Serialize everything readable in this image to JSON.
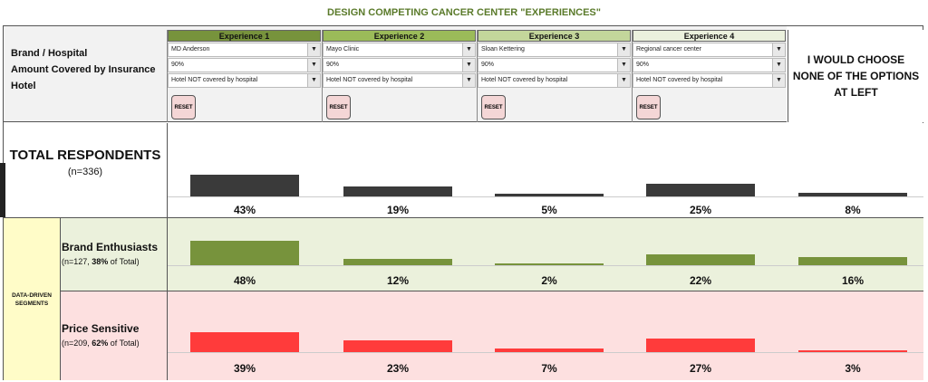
{
  "title": "DESIGN COMPETING CANCER CENTER \"EXPERIENCES\"",
  "attributes": [
    "Brand / Hospital",
    "Amount Covered by Insurance",
    "Hotel"
  ],
  "experiences": [
    {
      "label": "Experience 1",
      "brand": "MD Anderson",
      "coverage": "90%",
      "hotel": "Hotel NOT covered by hospital",
      "header_color": "#77933c"
    },
    {
      "label": "Experience 2",
      "brand": "Mayo Clinic",
      "coverage": "90%",
      "hotel": "Hotel NOT covered by hospital",
      "header_color": "#9bbb59"
    },
    {
      "label": "Experience 3",
      "brand": "Sloan Kettering",
      "coverage": "90%",
      "hotel": "Hotel NOT covered by hospital",
      "header_color": "#c3d69b"
    },
    {
      "label": "Experience 4",
      "brand": "Regional cancer center",
      "coverage": "90%",
      "hotel": "Hotel NOT covered by hospital",
      "header_color": "#ebf1dd"
    }
  ],
  "reset_label": "RESET",
  "none_option": "I WOULD CHOOSE NONE OF THE OPTIONS AT LEFT",
  "dropdown_arrow_icon": "triangle-down-icon",
  "segments_label": "DATA-DRIVEN SEGMENTS",
  "total": {
    "label": "TOTAL RESPONDENTS",
    "n": "(n=336)"
  },
  "brand": {
    "label": "Brand Enthusiasts",
    "n_prefix": "(n=127, ",
    "n_bold": "38%",
    "n_suffix": " of Total)"
  },
  "price": {
    "label": "Price Sensitive",
    "n_prefix": "(n=209, ",
    "n_bold": "62%",
    "n_suffix": " of Total)"
  },
  "chart_data": {
    "type": "bar",
    "categories": [
      "Experience 1",
      "Experience 2",
      "Experience 3",
      "Experience 4",
      "I WOULD CHOOSE NONE OF THE OPTIONS AT LEFT"
    ],
    "series": [
      {
        "name": "TOTAL RESPONDENTS",
        "values": [
          43,
          19,
          5,
          25,
          8
        ],
        "labels": [
          "43%",
          "19%",
          "5%",
          "25%",
          "8%"
        ],
        "color": "#3a3a3a"
      },
      {
        "name": "Brand Enthusiasts",
        "values": [
          48,
          12,
          2,
          22,
          16
        ],
        "labels": [
          "48%",
          "12%",
          "2%",
          "22%",
          "16%"
        ],
        "color": "#77933c"
      },
      {
        "name": "Price Sensitive",
        "values": [
          39,
          23,
          7,
          27,
          3
        ],
        "labels": [
          "39%",
          "23%",
          "7%",
          "27%",
          "3%"
        ],
        "color": "#ff3b3b"
      }
    ]
  }
}
